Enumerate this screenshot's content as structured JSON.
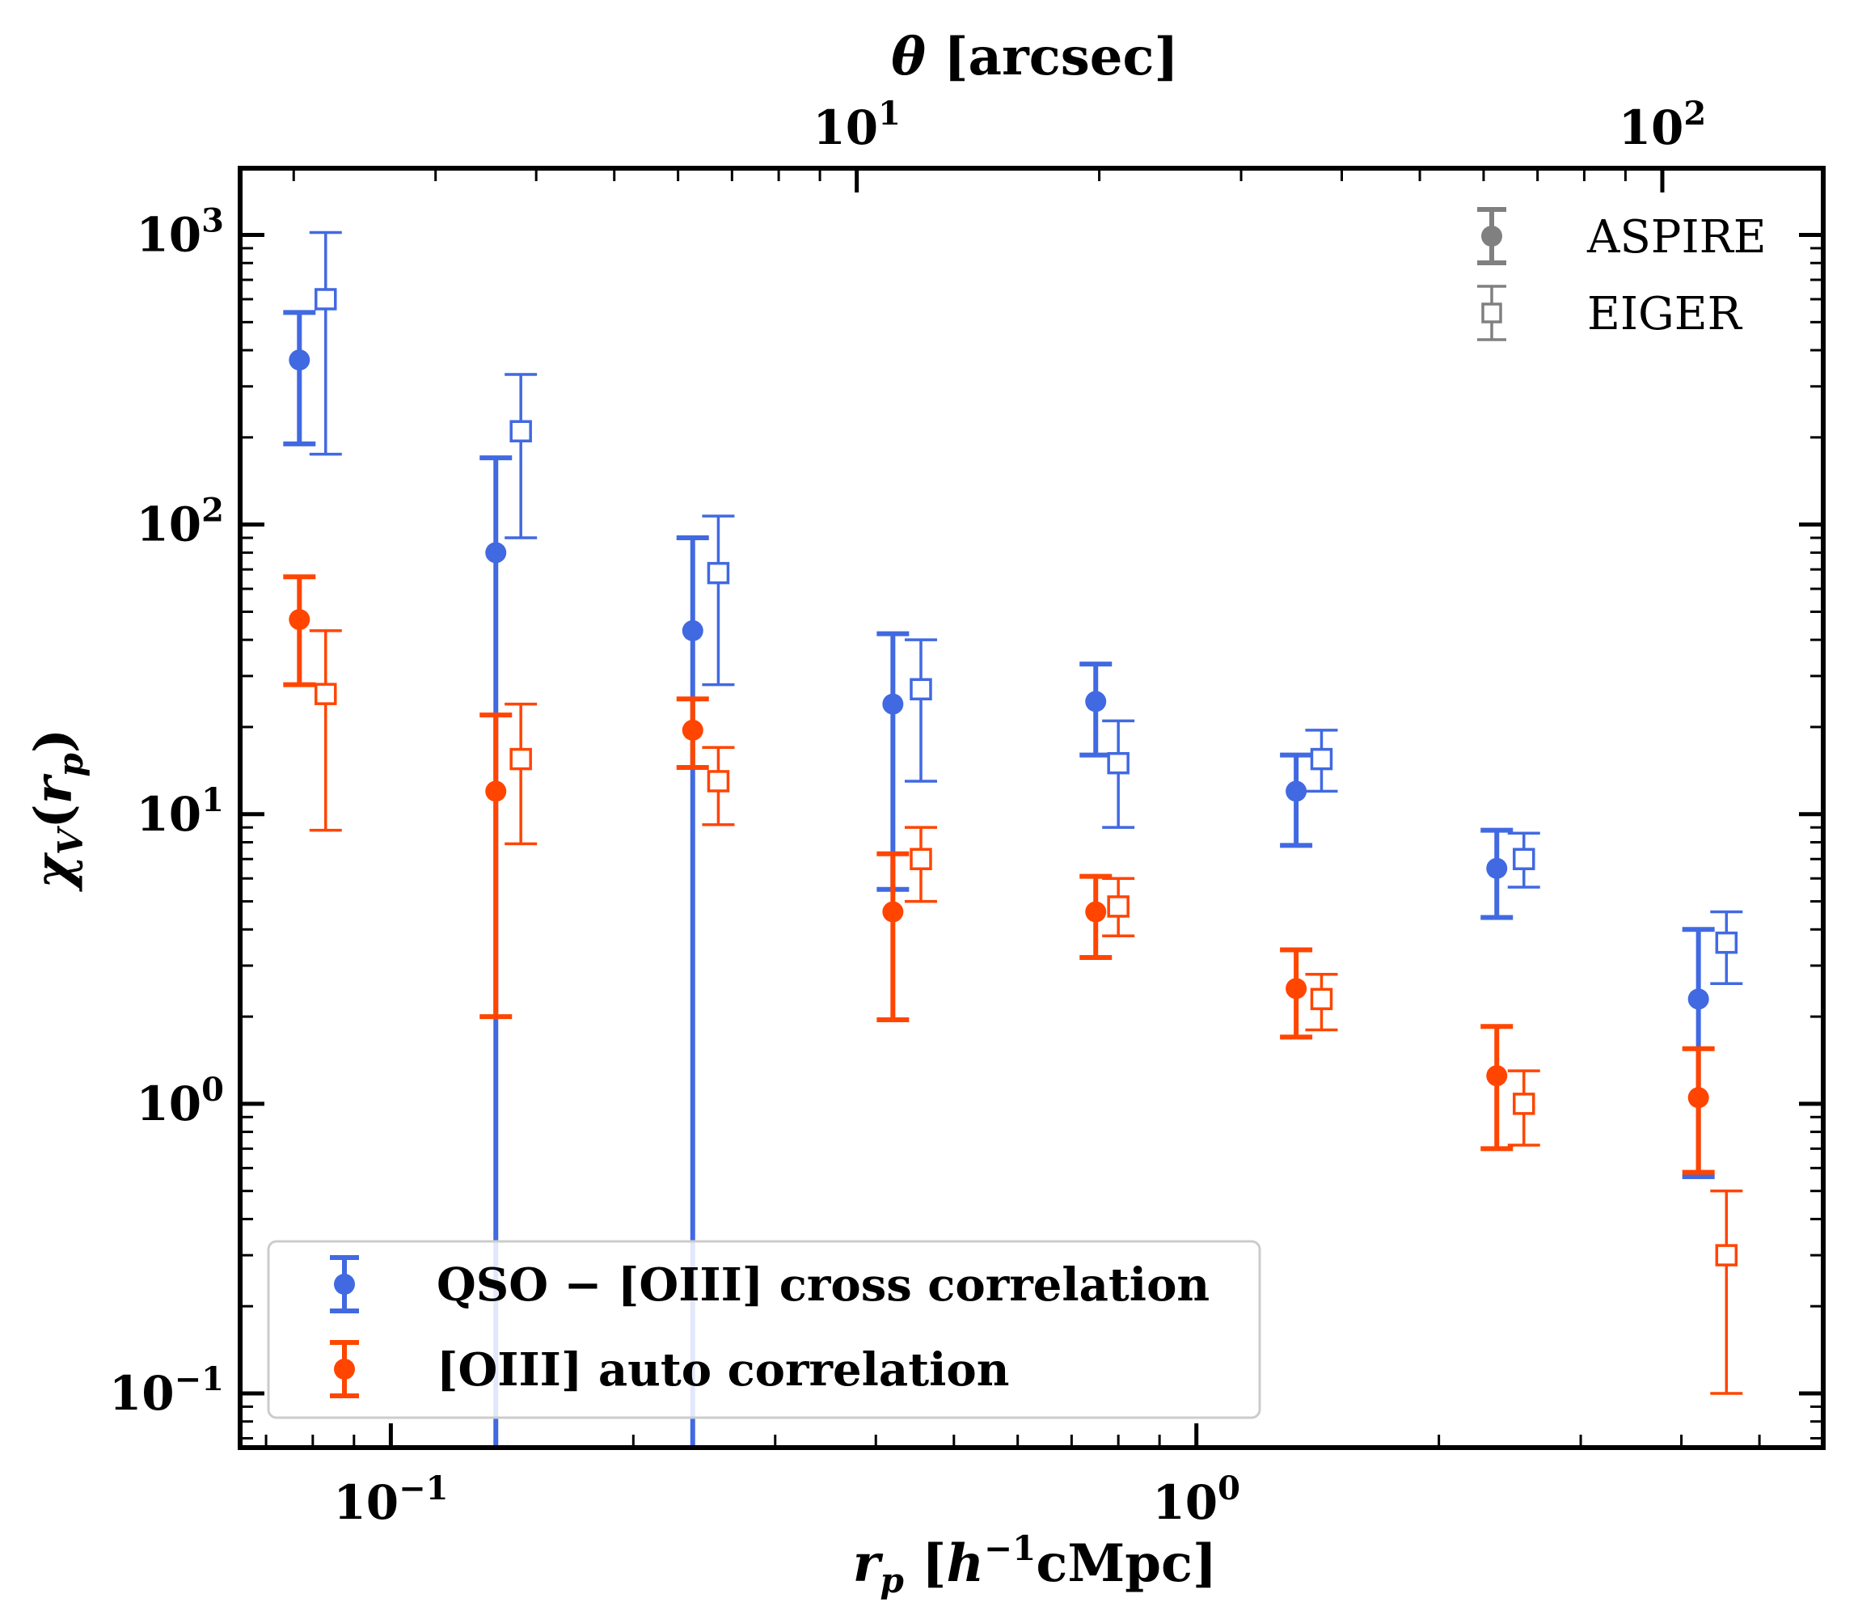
{
  "chart_data": {
    "type": "scatter",
    "xscale": "log",
    "yscale": "log",
    "xlim": [
      0.065,
      6.0
    ],
    "ylim": [
      0.065,
      1700
    ],
    "xlabel": "r_p [h^-1 cMpc]",
    "ylabel": "χ_V(r_p)",
    "top_xlabel": "θ [arcsec]",
    "top_axis": {
      "ticks": [
        {
          "value": 10,
          "base": "10",
          "exp": "1"
        },
        {
          "value": 100,
          "base": "10",
          "exp": "2"
        }
      ]
    },
    "x_ticks": [
      {
        "value": 0.1,
        "base": "10",
        "exp": "−1"
      },
      {
        "value": 1,
        "base": "10",
        "exp": "0"
      }
    ],
    "y_ticks": [
      {
        "value": 0.1,
        "base": "10",
        "exp": "−1"
      },
      {
        "value": 1,
        "base": "10",
        "exp": "0"
      },
      {
        "value": 10,
        "base": "10",
        "exp": "1"
      },
      {
        "value": 100,
        "base": "10",
        "exp": "2"
      },
      {
        "value": 1000,
        "base": "10",
        "exp": "3"
      }
    ],
    "series": [
      {
        "name": "QSO − [OIII] cross correlation",
        "color": "#4169E1",
        "survey": "ASPIRE",
        "marker": "filled-circle",
        "points": [
          {
            "x": 0.077,
            "y": 370,
            "lo": 190,
            "hi": 540
          },
          {
            "x": 0.135,
            "y": 80,
            "lo": 0.06,
            "hi": 170
          },
          {
            "x": 0.237,
            "y": 43,
            "lo": 0.06,
            "hi": 90
          },
          {
            "x": 0.42,
            "y": 24,
            "lo": 5.5,
            "hi": 42
          },
          {
            "x": 0.75,
            "y": 24.5,
            "lo": 16,
            "hi": 33
          },
          {
            "x": 1.33,
            "y": 12,
            "lo": 7.8,
            "hi": 16
          },
          {
            "x": 2.36,
            "y": 6.5,
            "lo": 4.4,
            "hi": 8.8
          },
          {
            "x": 4.2,
            "y": 2.3,
            "lo": 0.56,
            "hi": 4.0
          }
        ]
      },
      {
        "name": "QSO − [OIII] cross correlation",
        "color": "#4169E1",
        "survey": "EIGER",
        "marker": "open-square",
        "points": [
          {
            "x": 0.083,
            "y": 600,
            "lo": 175,
            "hi": 1020
          },
          {
            "x": 0.145,
            "y": 210,
            "lo": 90,
            "hi": 330
          },
          {
            "x": 0.255,
            "y": 68,
            "lo": 28,
            "hi": 107
          },
          {
            "x": 0.455,
            "y": 27,
            "lo": 13,
            "hi": 40
          },
          {
            "x": 0.8,
            "y": 15,
            "lo": 9,
            "hi": 21
          },
          {
            "x": 1.43,
            "y": 15.5,
            "lo": 12,
            "hi": 19.5
          },
          {
            "x": 2.55,
            "y": 7.0,
            "lo": 5.6,
            "hi": 8.6
          },
          {
            "x": 4.55,
            "y": 3.6,
            "lo": 2.6,
            "hi": 4.6
          }
        ]
      },
      {
        "name": "[OIII] auto correlation",
        "color": "#FF4500",
        "survey": "ASPIRE",
        "marker": "filled-circle",
        "points": [
          {
            "x": 0.077,
            "y": 47,
            "lo": 28,
            "hi": 66
          },
          {
            "x": 0.135,
            "y": 12,
            "lo": 2.0,
            "hi": 22
          },
          {
            "x": 0.237,
            "y": 19.5,
            "lo": 14.5,
            "hi": 25
          },
          {
            "x": 0.42,
            "y": 4.6,
            "lo": 1.95,
            "hi": 7.3
          },
          {
            "x": 0.75,
            "y": 4.6,
            "lo": 3.2,
            "hi": 6.1
          },
          {
            "x": 1.33,
            "y": 2.5,
            "lo": 1.7,
            "hi": 3.4
          },
          {
            "x": 2.36,
            "y": 1.25,
            "lo": 0.7,
            "hi": 1.85
          },
          {
            "x": 4.2,
            "y": 1.05,
            "lo": 0.58,
            "hi": 1.55
          }
        ]
      },
      {
        "name": "[OIII] auto correlation",
        "color": "#FF4500",
        "survey": "EIGER",
        "marker": "open-square",
        "points": [
          {
            "x": 0.083,
            "y": 26,
            "lo": 8.8,
            "hi": 43
          },
          {
            "x": 0.145,
            "y": 15.5,
            "lo": 7.9,
            "hi": 24
          },
          {
            "x": 0.255,
            "y": 13,
            "lo": 9.2,
            "hi": 17
          },
          {
            "x": 0.455,
            "y": 7.0,
            "lo": 5.0,
            "hi": 9.0
          },
          {
            "x": 0.8,
            "y": 4.8,
            "lo": 3.8,
            "hi": 6.0
          },
          {
            "x": 1.43,
            "y": 2.3,
            "lo": 1.8,
            "hi": 2.8
          },
          {
            "x": 2.55,
            "y": 1.0,
            "lo": 0.72,
            "hi": 1.3
          },
          {
            "x": 4.55,
            "y": 0.3,
            "lo": 0.1,
            "hi": 0.5
          }
        ]
      }
    ],
    "legend_surveys": [
      {
        "label": "ASPIRE",
        "marker": "filled-circle",
        "color": "#808080"
      },
      {
        "label": "EIGER",
        "marker": "open-square",
        "color": "#808080"
      }
    ],
    "legend_series": [
      {
        "label": "QSO − [OIII] cross correlation",
        "color": "#4169E1"
      },
      {
        "label": "[OIII] auto correlation",
        "color": "#FF4500"
      }
    ]
  }
}
